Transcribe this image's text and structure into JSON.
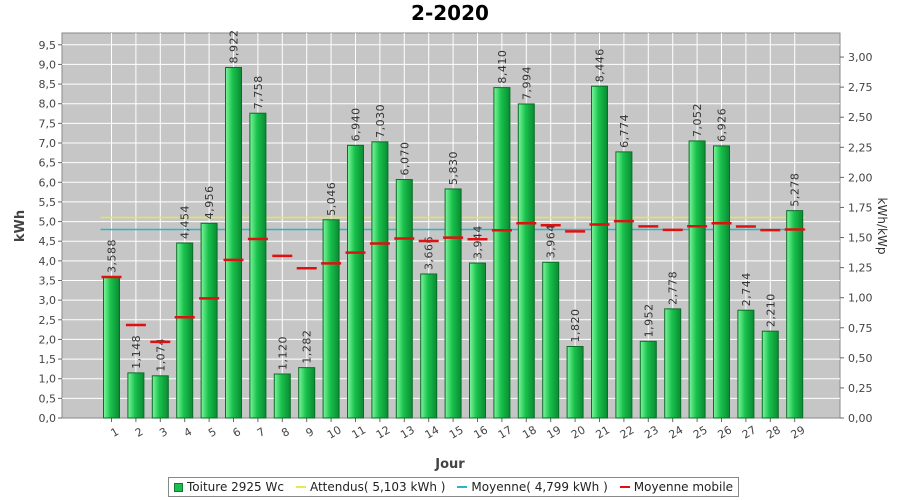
{
  "chart_data": {
    "type": "bar",
    "title": "2-2020",
    "xlabel": "Jour",
    "ylabel": "kWh",
    "y2label": "kWh/kWp",
    "ylim": [
      0,
      9.8
    ],
    "y2lim": [
      0,
      3.2
    ],
    "yticks": [
      "0,0",
      "0,5",
      "1,0",
      "1,5",
      "2,0",
      "2,5",
      "3,0",
      "3,5",
      "4,0",
      "4,5",
      "5,0",
      "5,5",
      "6,0",
      "6,5",
      "7,0",
      "7,5",
      "8,0",
      "8,5",
      "9,0",
      "9,5"
    ],
    "y2ticks": [
      "0,00",
      "0,25",
      "0,50",
      "0,75",
      "1,00",
      "1,25",
      "1,50",
      "1,75",
      "2,00",
      "2,25",
      "2,50",
      "2,75",
      "3,00"
    ],
    "categories": [
      "1",
      "2",
      "3",
      "4",
      "5",
      "6",
      "7",
      "8",
      "9",
      "10",
      "11",
      "12",
      "13",
      "14",
      "15",
      "16",
      "17",
      "18",
      "19",
      "20",
      "21",
      "22",
      "23",
      "24",
      "25",
      "26",
      "27",
      "28",
      "29"
    ],
    "series": [
      {
        "name": "Toiture 2925 Wc",
        "type": "bar",
        "values": [
          3.588,
          1.148,
          1.074,
          4.454,
          4.956,
          8.922,
          7.758,
          1.12,
          1.282,
          5.046,
          6.94,
          7.03,
          6.07,
          3.666,
          5.83,
          3.944,
          8.41,
          7.994,
          3.964,
          1.82,
          8.446,
          6.774,
          1.952,
          2.778,
          7.052,
          6.926,
          2.744,
          2.21,
          5.278
        ],
        "value_labels": [
          "3,588",
          "1,148",
          "1,074",
          "4,454",
          "4,956",
          "8,922",
          "7,758",
          "1,120",
          "1,282",
          "5,046",
          "6,940",
          "7,030",
          "6,070",
          "3,666",
          "5,830",
          "3,944",
          "8,410",
          "7,994",
          "3,964",
          "1,820",
          "8,446",
          "6,774",
          "1,952",
          "2,778",
          "7,052",
          "6,926",
          "2,744",
          "2,210",
          "5,278"
        ],
        "color": "#1bbf4f"
      },
      {
        "name": "Attendus( 5,103 kWh )",
        "type": "hline",
        "value": 5.103,
        "color": "#e8e84a"
      },
      {
        "name": "Moyenne( 4,799 kWh )",
        "type": "hline",
        "value": 4.799,
        "color": "#2bb5c9"
      },
      {
        "name": "Moyenne mobile",
        "type": "marker",
        "values": [
          3.588,
          2.368,
          1.937,
          2.566,
          3.044,
          4.024,
          4.557,
          4.127,
          3.811,
          3.935,
          4.208,
          4.443,
          4.568,
          4.504,
          4.592,
          4.551,
          4.778,
          4.957,
          4.905,
          4.751,
          4.927,
          5.01,
          4.877,
          4.79,
          4.88,
          4.958,
          4.876,
          4.781,
          4.799
        ],
        "color": "#e01010"
      }
    ],
    "grid": true,
    "legend_position": "bottom"
  }
}
